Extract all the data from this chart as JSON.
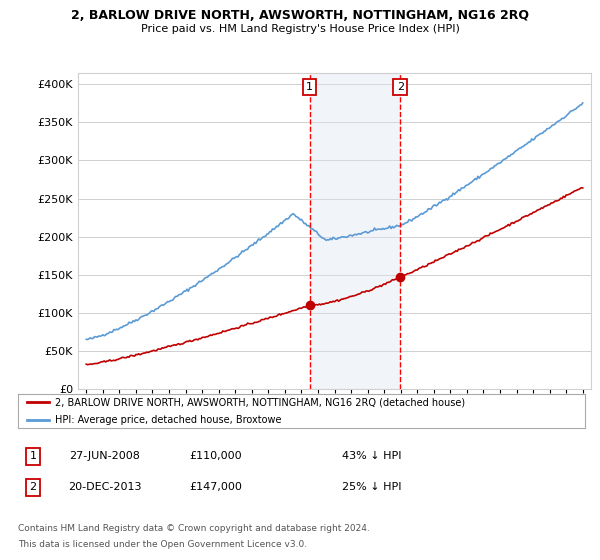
{
  "title": "2, BARLOW DRIVE NORTH, AWSWORTH, NOTTINGHAM, NG16 2RQ",
  "subtitle": "Price paid vs. HM Land Registry's House Price Index (HPI)",
  "ylabel_ticks": [
    "£0",
    "£50K",
    "£100K",
    "£150K",
    "£200K",
    "£250K",
    "£300K",
    "£350K",
    "£400K"
  ],
  "ytick_values": [
    0,
    50000,
    100000,
    150000,
    200000,
    250000,
    300000,
    350000,
    400000
  ],
  "ylim": [
    0,
    415000
  ],
  "xlim_start": 1994.5,
  "xlim_end": 2025.5,
  "sale1_date": 2008.49,
  "sale1_price": 110000,
  "sale1_label": "1",
  "sale2_date": 2013.97,
  "sale2_price": 147000,
  "sale2_label": "2",
  "legend_entry1": "2, BARLOW DRIVE NORTH, AWSWORTH, NOTTINGHAM, NG16 2RQ (detached house)",
  "legend_entry2": "HPI: Average price, detached house, Broxtowe",
  "table_row1_num": "1",
  "table_row1_date": "27-JUN-2008",
  "table_row1_price": "£110,000",
  "table_row1_note": "43% ↓ HPI",
  "table_row2_num": "2",
  "table_row2_date": "20-DEC-2013",
  "table_row2_price": "£147,000",
  "table_row2_note": "25% ↓ HPI",
  "footer_line1": "Contains HM Land Registry data © Crown copyright and database right 2024.",
  "footer_line2": "This data is licensed under the Open Government Licence v3.0.",
  "hpi_color": "#5b9bd5",
  "price_color": "#c00000",
  "sale_marker_color": "#c00000",
  "vline_color": "#ff0000",
  "shade_color": "#dce6f1",
  "background_color": "#ffffff",
  "grid_color": "#d0d0d0"
}
